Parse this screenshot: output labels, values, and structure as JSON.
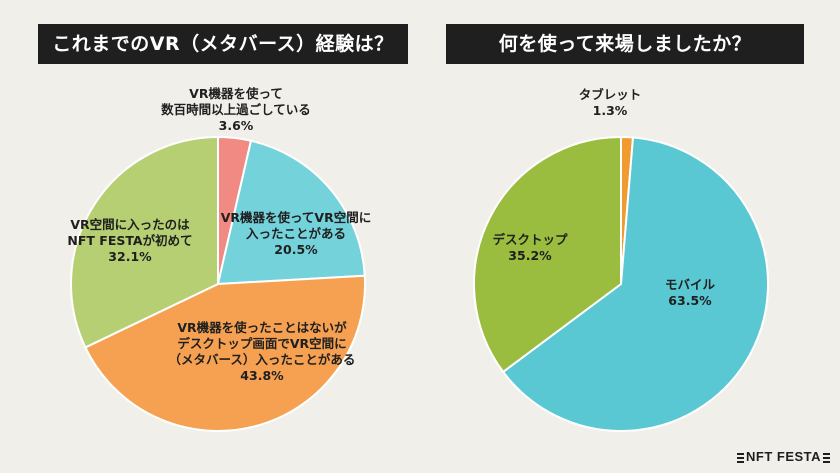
{
  "chart_data": [
    {
      "type": "pie",
      "title": "これまでのVR（メタバース）経験は？",
      "slices": [
        {
          "lines": [
            "VR機器を使って",
            "数百時間以上過ごしている"
          ],
          "value": 3.6,
          "value_label": "3.6%",
          "color": "#f08a82"
        },
        {
          "lines": [
            "VR機器を使ってVR空間に",
            "入ったことがある"
          ],
          "value": 20.5,
          "value_label": "20.5%",
          "color": "#74d2db"
        },
        {
          "lines": [
            "VR機器を使ったことはないが",
            "デスクトップ画面でVR空間に",
            "（メタバース）入ったことがある"
          ],
          "value": 43.8,
          "value_label": "43.8%",
          "color": "#f6a151"
        },
        {
          "lines": [
            "VR空間に入ったのは",
            "NFT FESTAが初めて"
          ],
          "value": 32.1,
          "value_label": "32.1%",
          "color": "#b6cf73"
        }
      ]
    },
    {
      "type": "pie",
      "title": "何を使って来場しましたか？",
      "slices": [
        {
          "lines": [
            "タブレット"
          ],
          "value": 1.3,
          "value_label": "1.3%",
          "color": "#f09a2f"
        },
        {
          "lines": [
            "モバイル"
          ],
          "value": 63.5,
          "value_label": "63.5%",
          "color": "#59c8d2"
        },
        {
          "lines": [
            "デスクトップ"
          ],
          "value": 35.2,
          "value_label": "35.2%",
          "color": "#9bbd3f"
        }
      ]
    }
  ],
  "logo": {
    "text": "NFT FESTA"
  }
}
